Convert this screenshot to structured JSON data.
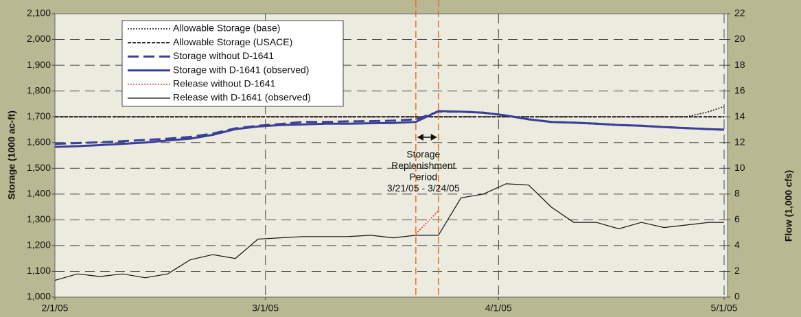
{
  "chart_data": {
    "type": "line",
    "x": [
      "2/1/05",
      "2/4/05",
      "2/7/05",
      "2/10/05",
      "2/13/05",
      "2/16/05",
      "2/19/05",
      "2/22/05",
      "2/25/05",
      "2/28/05",
      "3/3/05",
      "3/6/05",
      "3/9/05",
      "3/12/05",
      "3/15/05",
      "3/18/05",
      "3/21/05",
      "3/24/05",
      "3/27/05",
      "3/30/05",
      "4/2/05",
      "4/5/05",
      "4/8/05",
      "4/11/05",
      "4/14/05",
      "4/17/05",
      "4/20/05",
      "4/23/05",
      "4/26/05",
      "4/29/05",
      "5/1/05"
    ],
    "xlim": [
      "2/1/05",
      "5/1/05"
    ],
    "xticks": [
      "2/1/05",
      "3/1/05",
      "4/1/05",
      "5/1/05"
    ],
    "ylabel": "Storage (1000 ac-ft)",
    "y2label": "Flow (1,000 cfs)",
    "ylim": [
      1000,
      2100
    ],
    "yticks": [
      {
        "value": 1000,
        "label": "1,000"
      },
      {
        "value": 1100,
        "label": "1,100"
      },
      {
        "value": 1200,
        "label": "1,200"
      },
      {
        "value": 1300,
        "label": "1,300"
      },
      {
        "value": 1400,
        "label": "1,400"
      },
      {
        "value": 1500,
        "label": "1,500"
      },
      {
        "value": 1600,
        "label": "1,600"
      },
      {
        "value": 1700,
        "label": "1,700"
      },
      {
        "value": 1800,
        "label": "1,800"
      },
      {
        "value": 1900,
        "label": "1,900"
      },
      {
        "value": 2000,
        "label": "2,000"
      },
      {
        "value": 2100,
        "label": "2,100"
      }
    ],
    "y2lim": [
      0,
      22
    ],
    "y2ticks": [
      0,
      2,
      4,
      6,
      8,
      10,
      12,
      14,
      16,
      18,
      20,
      22
    ],
    "grid": true,
    "legend": "upper left",
    "series": [
      {
        "name": "Allowable Storage (base)",
        "color": "#111111",
        "style": "dotted",
        "width": 1.5,
        "values": [
          1700,
          1700,
          1700,
          1700,
          1700,
          1700,
          1700,
          1700,
          1700,
          1700,
          1700,
          1700,
          1700,
          1700,
          1700,
          1700,
          1700,
          1700,
          1700,
          1700,
          1700,
          1700,
          1700,
          1700,
          1700,
          1700,
          1700,
          1700,
          1700,
          1720,
          1740
        ]
      },
      {
        "name": "Allowable Storage (USACE)",
        "color": "#111111",
        "style": "dashed",
        "width": 2,
        "values": [
          1700,
          1700,
          1700,
          1700,
          1700,
          1700,
          1700,
          1700,
          1700,
          1700,
          1700,
          1700,
          1700,
          1700,
          1700,
          1700,
          1700,
          1700,
          1700,
          1700,
          1700,
          1700,
          1700,
          1700,
          1700,
          1700,
          1700,
          1700,
          1700,
          1700,
          1700
        ]
      },
      {
        "name": "Storage without D-1641",
        "color": "#3b4096",
        "style": "longdash",
        "width": 3,
        "values": [
          1595,
          1598,
          1601,
          1605,
          1610,
          1615,
          1622,
          1635,
          1655,
          1665,
          1672,
          1680,
          1680,
          1682,
          1683,
          1685,
          1690,
          1720,
          1720,
          1716,
          1705,
          1690,
          1680,
          1677,
          1673,
          1668,
          1665,
          1660,
          1656,
          1652,
          1650
        ]
      },
      {
        "name": "Storage with D-1641 (observed)",
        "color": "#3b4096",
        "style": "solid",
        "width": 3,
        "values": [
          1583,
          1586,
          1590,
          1595,
          1600,
          1608,
          1615,
          1630,
          1652,
          1662,
          1668,
          1670,
          1673,
          1673,
          1675,
          1676,
          1680,
          1722,
          1720,
          1716,
          1705,
          1690,
          1680,
          1677,
          1673,
          1668,
          1665,
          1660,
          1656,
          1652,
          1650
        ]
      },
      {
        "name": "Release without D-1641",
        "color": "#e03020",
        "style": "dotted",
        "width": 1.5,
        "axis": "y2",
        "values": [
          null,
          null,
          null,
          null,
          null,
          null,
          null,
          null,
          null,
          null,
          null,
          null,
          null,
          null,
          null,
          null,
          4.9,
          6.7,
          null,
          null,
          null,
          null,
          null,
          null,
          null,
          null,
          null,
          null,
          null,
          null,
          null
        ]
      },
      {
        "name": "Release with D-1641 (observed)",
        "color": "#111111",
        "style": "solid",
        "width": 1.2,
        "axis": "y2",
        "values": [
          1.3,
          1.8,
          1.6,
          1.8,
          1.5,
          1.8,
          2.9,
          3.3,
          3.0,
          4.5,
          4.6,
          4.7,
          4.7,
          4.7,
          4.8,
          4.6,
          4.8,
          4.8,
          7.7,
          8.0,
          8.8,
          8.7,
          7.0,
          5.8,
          5.8,
          5.3,
          5.8,
          5.4,
          5.6,
          5.8,
          5.8
        ]
      }
    ],
    "markers": [
      {
        "x": "3/21/05",
        "color": "#f07020"
      },
      {
        "x": "3/24/05",
        "color": "#f07020"
      }
    ],
    "annotation": {
      "lines": [
        "Storage",
        "Replenishment",
        "Period",
        "3/21/05 - 3/24/05"
      ],
      "x": "3/22/05"
    }
  }
}
